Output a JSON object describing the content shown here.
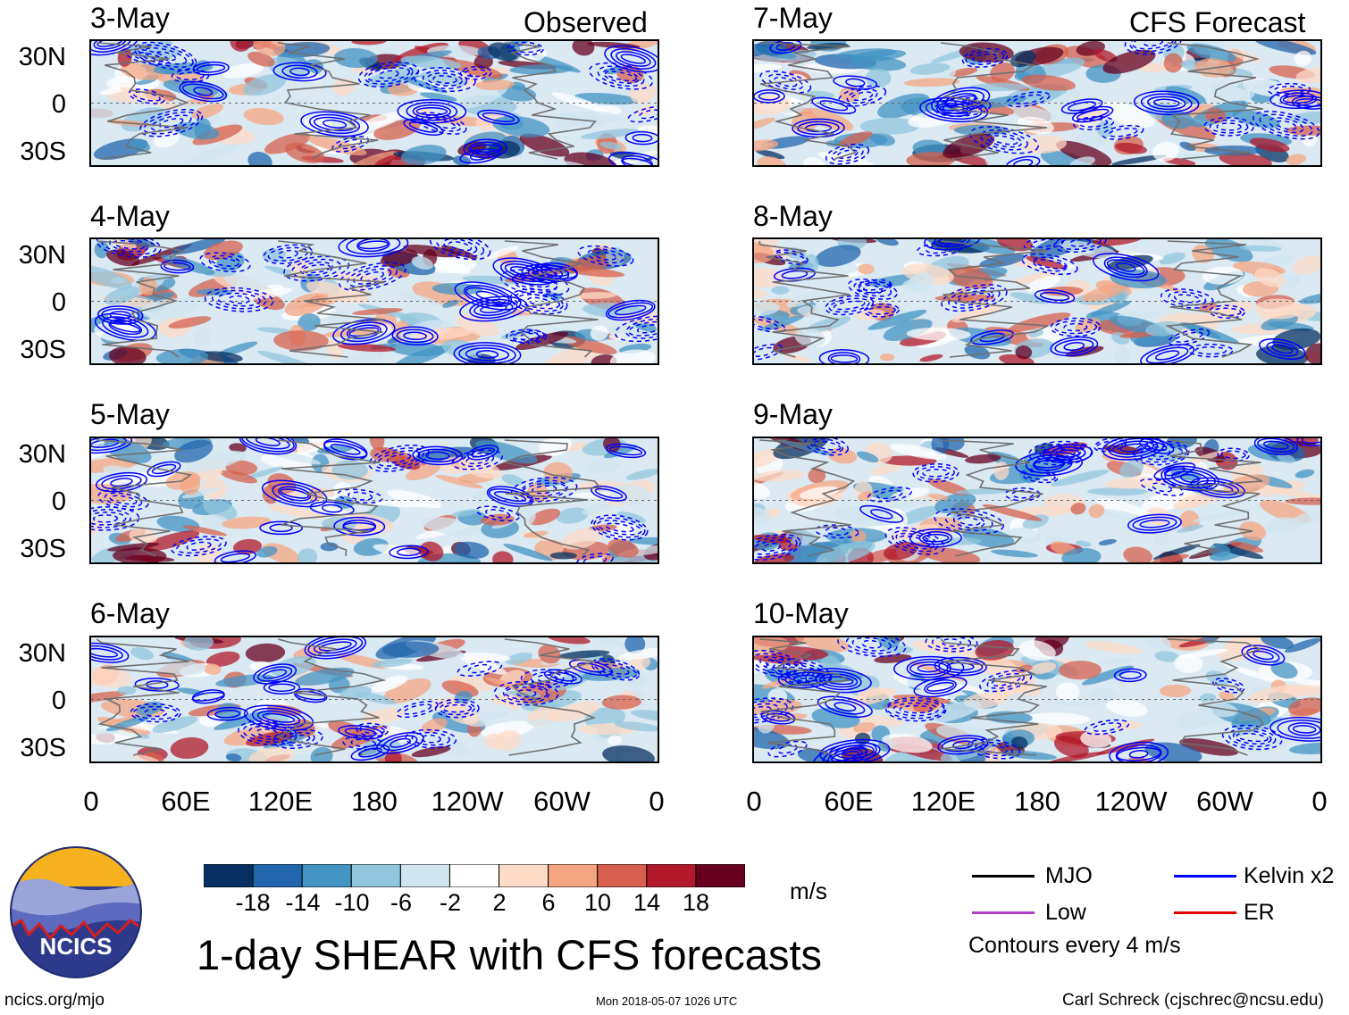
{
  "chart_data": {
    "type": "heatmap",
    "title": "1-day SHEAR with CFS forecasts",
    "units": "m/s",
    "observed_label": "Observed",
    "forecast_label": "CFS Forecast",
    "panels_observed": [
      "3-May",
      "4-May",
      "5-May",
      "6-May"
    ],
    "panels_forecast": [
      "7-May",
      "8-May",
      "9-May",
      "10-May"
    ],
    "yticks": [
      "30N",
      "0",
      "30S"
    ],
    "xticks": [
      "0",
      "60E",
      "120E",
      "180",
      "120W",
      "60W",
      "0"
    ],
    "colorbar_ticks": [
      "-18",
      "-14",
      "-10",
      "-6",
      "-2",
      "2",
      "6",
      "10",
      "14",
      "18"
    ],
    "colorbar_colors": [
      "#053061",
      "#2166ac",
      "#4393c3",
      "#92c5de",
      "#d1e5f0",
      "#ffffff",
      "#fddbc7",
      "#f4a582",
      "#d6604d",
      "#b2182b",
      "#67001f"
    ],
    "contour_legend": [
      {
        "label": "MJO",
        "color": "#000000"
      },
      {
        "label": "Kelvin x2",
        "color": "#0000ff"
      },
      {
        "label": "Low",
        "color": "#b040c8"
      },
      {
        "label": "ER",
        "color": "#e00000"
      }
    ],
    "contour_note": "Contours every 4 m/s"
  },
  "footer": {
    "left": "ncics.org/mjo",
    "center": "Mon 2018-05-07 1026 UTC",
    "right": "Carl Schreck (cjschrec@ncsu.edu)"
  },
  "logo": {
    "text": "NCICS"
  }
}
